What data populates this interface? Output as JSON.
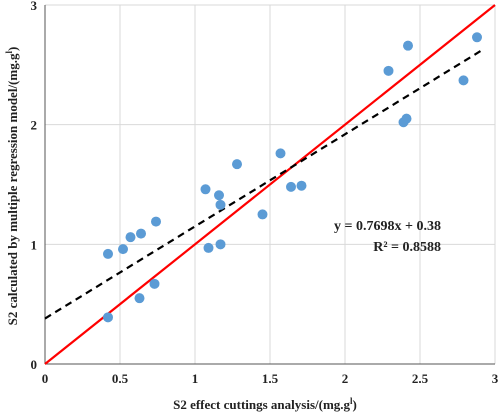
{
  "chart_data": {
    "type": "scatter",
    "title": "",
    "xlabel": "S2 effect cuttings analysis/(mg.g",
    "xlabel_sup": "l",
    "xlabel_end": ")",
    "ylabel": "S2 calculated by multiple regression model/(mg.g",
    "ylabel_sup": "l",
    "ylabel_end": ")",
    "xlim": [
      0,
      3
    ],
    "ylim": [
      0,
      3
    ],
    "x_ticks": [
      "0",
      "0.5",
      "1",
      "1.5",
      "2",
      "2.5",
      "3"
    ],
    "y_ticks": [
      "0",
      "1",
      "2",
      "3"
    ],
    "grid": true,
    "point_color": "#5b9bd5",
    "points": [
      {
        "x": 0.42,
        "y": 0.39
      },
      {
        "x": 0.42,
        "y": 0.92
      },
      {
        "x": 0.52,
        "y": 0.96
      },
      {
        "x": 0.57,
        "y": 1.06
      },
      {
        "x": 0.63,
        "y": 0.55
      },
      {
        "x": 0.64,
        "y": 1.09
      },
      {
        "x": 0.73,
        "y": 0.67
      },
      {
        "x": 0.74,
        "y": 1.19
      },
      {
        "x": 1.07,
        "y": 1.46
      },
      {
        "x": 1.09,
        "y": 0.97
      },
      {
        "x": 1.16,
        "y": 1.41
      },
      {
        "x": 1.17,
        "y": 1.33
      },
      {
        "x": 1.17,
        "y": 1.0
      },
      {
        "x": 1.28,
        "y": 1.67
      },
      {
        "x": 1.45,
        "y": 1.25
      },
      {
        "x": 1.57,
        "y": 1.76
      },
      {
        "x": 1.64,
        "y": 1.48
      },
      {
        "x": 1.71,
        "y": 1.49
      },
      {
        "x": 2.29,
        "y": 2.45
      },
      {
        "x": 2.39,
        "y": 2.02
      },
      {
        "x": 2.41,
        "y": 2.05
      },
      {
        "x": 2.42,
        "y": 2.66
      },
      {
        "x": 2.79,
        "y": 2.37
      },
      {
        "x": 2.88,
        "y": 2.73
      }
    ],
    "lines": [
      {
        "kind": "reference",
        "x": [
          0,
          3
        ],
        "y": [
          0,
          3
        ],
        "color": "#ff0000",
        "style": "solid"
      },
      {
        "kind": "trendline",
        "slope": 0.7698,
        "intercept": 0.38,
        "x": [
          0,
          2.91
        ],
        "color": "#000000",
        "style": "dashed"
      }
    ],
    "annotations": {
      "equation": "y = 0.7698x + 0.38",
      "r_squared": "R² = 0.8588"
    }
  }
}
